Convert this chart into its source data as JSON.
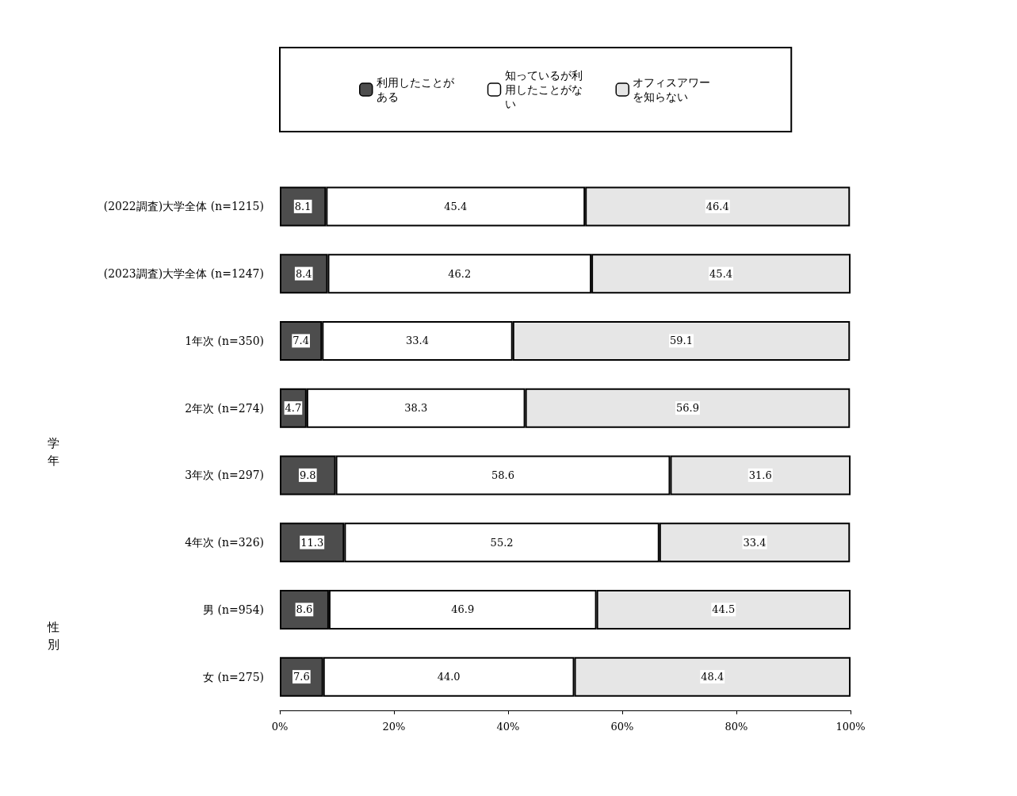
{
  "chart_data": {
    "type": "bar",
    "orientation": "horizontal",
    "stacked": true,
    "categories": [
      "(2022調査)大学全体 (n=1215)",
      "(2023調査)大学全体 (n=1247)",
      "1年次 (n=350)",
      "2年次 (n=274)",
      "3年次 (n=297)",
      "4年次 (n=326)",
      "男 (n=954)",
      "女 (n=275)"
    ],
    "series": [
      {
        "name": "利用したことがある",
        "color": "#4d4d4d",
        "values": [
          8.1,
          8.4,
          7.4,
          4.7,
          9.8,
          11.3,
          8.6,
          7.6
        ],
        "value_labels": [
          "8.1",
          "8.4",
          "7.4",
          "4.7",
          "9.8",
          "11.3",
          "8.6",
          "7.6"
        ]
      },
      {
        "name": "知っているが利用したことがない",
        "color": "#ffffff",
        "values": [
          45.4,
          46.2,
          33.4,
          38.3,
          58.6,
          55.2,
          46.9,
          44.0
        ],
        "value_labels": [
          "45.4",
          "46.2",
          "33.4",
          "38.3",
          "58.6",
          "55.2",
          "46.9",
          "44.0"
        ]
      },
      {
        "name": "オフィスアワーを知らない",
        "color": "#e6e6e6",
        "values": [
          46.4,
          45.4,
          59.1,
          56.9,
          31.6,
          33.4,
          44.5,
          48.4
        ],
        "value_labels": [
          "46.4",
          "45.4",
          "59.1",
          "56.9",
          "31.6",
          "33.4",
          "44.5",
          "48.4"
        ]
      }
    ],
    "xlim": [
      0,
      100
    ],
    "xticks": [
      {
        "value": 0,
        "label": "0%"
      },
      {
        "value": 20,
        "label": "20%"
      },
      {
        "value": 40,
        "label": "40%"
      },
      {
        "value": 60,
        "label": "60%"
      },
      {
        "value": 80,
        "label": "80%"
      },
      {
        "value": 100,
        "label": "100%"
      }
    ],
    "annotations": [
      "学年",
      "性別"
    ],
    "legend": "top",
    "grid": false
  }
}
